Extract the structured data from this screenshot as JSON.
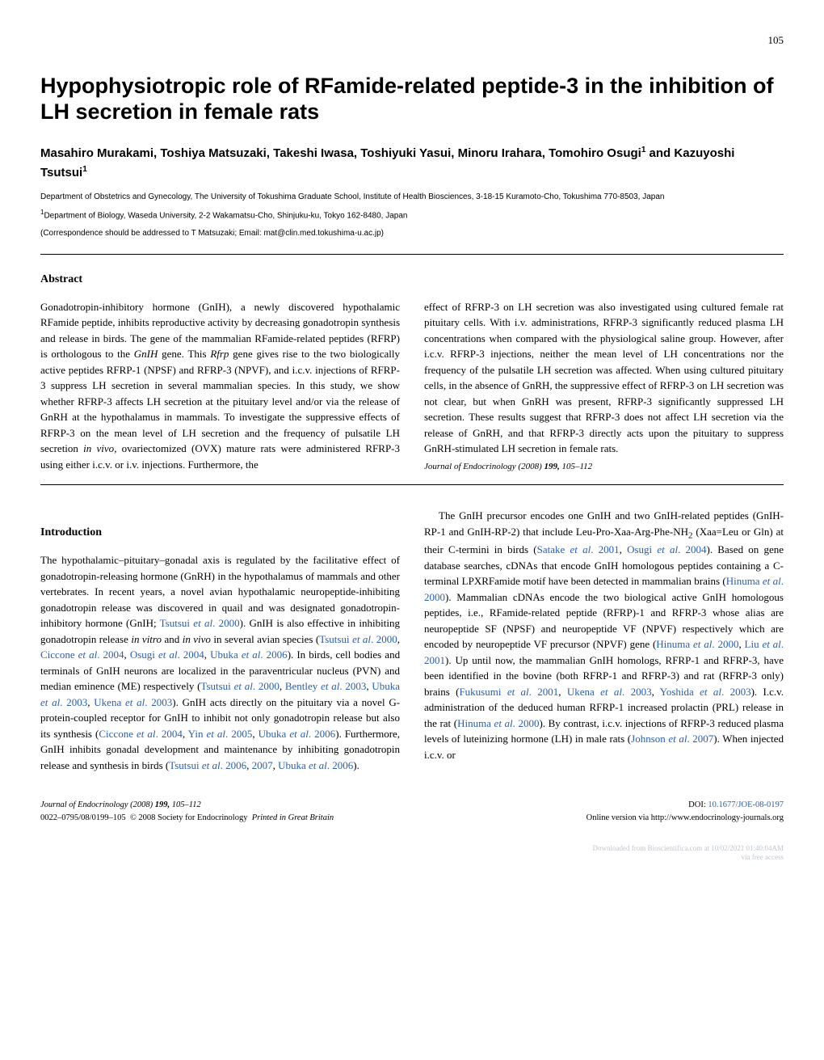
{
  "page_number": "105",
  "title": "Hypophysiotropic role of RFamide-related peptide-3 in the inhibition of LH secretion in female rats",
  "authors_html": "Masahiro Murakami, Toshiya Matsuzaki, Takeshi Iwasa, Toshiyuki Yasui, Minoru Irahara, Tomohiro Osugi<sup>1</sup> and <b>Kazuyoshi Tsutsui<sup>1</sup></b>",
  "affiliations": [
    "Department of Obstetrics and Gynecology, The University of Tokushima Graduate School, Institute of Health Biosciences, 3-18-15 Kuramoto-Cho, Tokushima 770-8503, Japan",
    "<sup>1</sup>Department of Biology, Waseda University, 2-2 Wakamatsu-Cho, Shinjuku-ku, Tokyo 162-8480, Japan"
  ],
  "correspondence": "(Correspondence should be addressed to T Matsuzaki; Email: mat@clin.med.tokushima-u.ac.jp)",
  "abstract_heading": "Abstract",
  "abstract_left": "Gonadotropin-inhibitory hormone (GnIH), a newly discovered hypothalamic RFamide peptide, inhibits reproductive activity by decreasing gonadotropin synthesis and release in birds. The gene of the mammalian RFamide-related peptides (RFRP) is orthologous to the <i>GnIH</i> gene. This <i>Rfrp</i> gene gives rise to the two biologically active peptides RFRP-1 (NPSF) and RFRP-3 (NPVF), and i.c.v. injections of RFRP-3 suppress LH secretion in several mammalian species. In this study, we show whether RFRP-3 affects LH secretion at the pituitary level and/or via the release of GnRH at the hypothalamus in mammals. To investigate the suppressive effects of RFRP-3 on the mean level of LH secretion and the frequency of pulsatile LH secretion <i>in vivo</i>, ovariectomized (OVX) mature rats were administered RFRP-3 using either i.c.v. or i.v. injections. Furthermore, the",
  "abstract_right": "effect of RFRP-3 on LH secretion was also investigated using cultured female rat pituitary cells. With i.v. administrations, RFRP-3 significantly reduced plasma LH concentrations when compared with the physiological saline group. However, after i.c.v. RFRP-3 injections, neither the mean level of LH concentrations nor the frequency of the pulsatile LH secretion was affected. When using cultured pituitary cells, in the absence of GnRH, the suppressive effect of RFRP-3 on LH secretion was not clear, but when GnRH was present, RFRP-3 significantly suppressed LH secretion. These results suggest that RFRP-3 does not affect LH secretion via the release of GnRH, and that RFRP-3 directly acts upon the pituitary to suppress GnRH-stimulated LH secretion in female rats.",
  "journal_line": "Journal of Endocrinology (2008) <b>199,</b> 105–112",
  "intro_heading": "Introduction",
  "intro_left_p1": "The hypothalamic–pituitary–gonadal axis is regulated by the facilitative effect of gonadotropin-releasing hormone (GnRH) in the hypothalamus of mammals and other vertebrates. In recent years, a novel avian hypothalamic neuropeptide-inhibiting gonadotropin release was discovered in quail and was designated gonadotropin-inhibitory hormone (GnIH; <span class=\"link\">Tsutsui <i>et al</i>. 2000</span>). GnIH is also effective in inhibiting gonadotropin release <i>in vitro</i> and <i>in vivo</i> in several avian species (<span class=\"link\">Tsutsui <i>et al</i>. 2000</span>, <span class=\"link\">Ciccone <i>et al</i>. 2004</span>, <span class=\"link\">Osugi <i>et al</i>. 2004</span>, <span class=\"link\">Ubuka <i>et al</i>. 2006</span>). In birds, cell bodies and terminals of GnIH neurons are localized in the paraventricular nucleus (PVN) and median eminence (ME) respectively (<span class=\"link\">Tsutsui <i>et al</i>. 2000</span>, <span class=\"link\">Bentley <i>et al</i>. 2003</span>, <span class=\"link\">Ubuka <i>et al</i>. 2003</span>, <span class=\"link\">Ukena <i>et al</i>. 2003</span>). GnIH acts directly on the pituitary via a novel G-protein-coupled receptor for GnIH to inhibit not only gonadotropin release but also its synthesis (<span class=\"link\">Ciccone <i>et al</i>. 2004</span>, <span class=\"link\">Yin <i>et al</i>. 2005</span>, <span class=\"link\">Ubuka <i>et al</i>. 2006</span>). Furthermore, GnIH inhibits gonadal development and maintenance by inhibiting gonadotropin release and synthesis in birds (<span class=\"link\">Tsutsui <i>et al</i>. 2006</span>, <span class=\"link\">2007</span>, <span class=\"link\">Ubuka <i>et al</i>. 2006</span>).",
  "intro_right_p1": "The GnIH precursor encodes one GnIH and two GnIH-related peptides (GnIH-RP-1 and GnIH-RP-2) that include Leu-Pro-Xaa-Arg-Phe-NH<sub>2</sub> (Xaa=Leu or Gln) at their C-termini in birds (<span class=\"link\">Satake <i>et al</i>. 2001</span>, <span class=\"link\">Osugi <i>et al</i>. 2004</span>). Based on gene database searches, cDNAs that encode GnIH homologous peptides containing a C-terminal LPXRFamide motif have been detected in mammalian brains (<span class=\"link\">Hinuma <i>et al</i>. 2000</span>). Mammalian cDNAs encode the two biological active GnIH homologous peptides, i.e., RFamide-related peptide (RFRP)-1 and RFRP-3 whose alias are neuropeptide SF (NPSF) and neuropeptide VF (NPVF) respectively which are encoded by neuropeptide VF precursor (NPVF) gene (<span class=\"link\">Hinuma <i>et al</i>. 2000</span>, <span class=\"link\">Liu <i>et al</i>. 2001</span>). Up until now, the mammalian GnIH homologs, RFRP-1 and RFRP-3, have been identified in the bovine (both RFRP-1 and RFRP-3) and rat (RFRP-3 only) brains (<span class=\"link\">Fukusumi <i>et al</i>. 2001</span>, <span class=\"link\">Ukena <i>et al</i>. 2003</span>, <span class=\"link\">Yoshida <i>et al</i>. 2003</span>). I.c.v. administration of the deduced human RFRP-1 increased prolactin (PRL) release in the rat (<span class=\"link\">Hinuma <i>et al</i>. 2000</span>). By contrast, i.c.v. injections of RFRP-3 reduced plasma levels of luteinizing hormone (LH) in male rats (<span class=\"link\">Johnson <i>et al</i>. 2007</span>). When injected i.c.v. or",
  "footer": {
    "left_line1": "Journal of Endocrinology (2008) <b>199,</b> 105–112",
    "left_line2": "0022–0795/08/0199–105 &nbsp;© 2008 Society for Endocrinology &nbsp;<i>Printed in Great Britain</i>",
    "right_line1": "DOI: <span class=\"link\">10.1677/JOE-08-0197</span>",
    "right_line2": "Online version via http://www.endocrinology-journals.org"
  },
  "download_line1": "Downloaded from Bioscientifica.com at 10/02/2021 01:40:04AM",
  "download_line2": "via free access",
  "colors": {
    "text": "#000000",
    "background": "#ffffff",
    "link": "#2a5db0",
    "faint_note": "#bfc7d0"
  }
}
